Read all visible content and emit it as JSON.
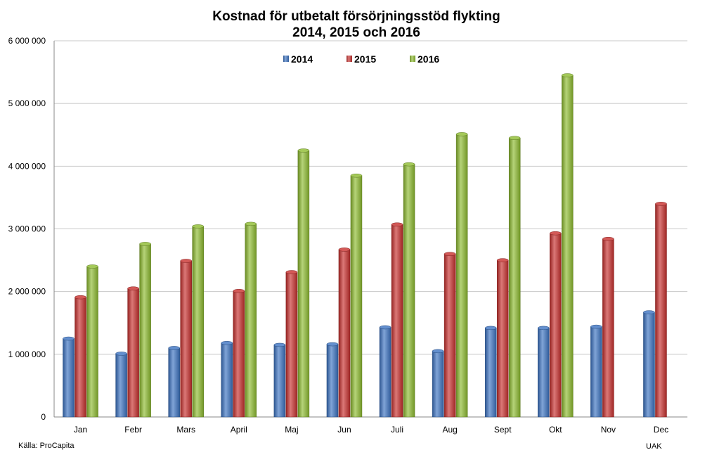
{
  "chart_data": {
    "type": "bar",
    "title": [
      "Kostnad för utbetalt försörjningsstöd flykting",
      "2014, 2015 och 2016"
    ],
    "categories": [
      "Jan",
      "Febr",
      "Mars",
      "April",
      "Maj",
      "Jun",
      "Juli",
      "Aug",
      "Sept",
      "Okt",
      "Nov",
      "Dec"
    ],
    "series": [
      {
        "name": "2014",
        "color": "#3c73c2",
        "values": [
          1250000,
          1010000,
          1100000,
          1180000,
          1150000,
          1160000,
          1430000,
          1050000,
          1420000,
          1420000,
          1440000,
          1670000
        ]
      },
      {
        "name": "2015",
        "color": "#c8302d",
        "values": [
          1910000,
          2050000,
          2490000,
          2010000,
          2310000,
          2670000,
          3070000,
          2600000,
          2500000,
          2930000,
          2840000,
          3400000
        ]
      },
      {
        "name": "2016",
        "color": "#8dbb2f",
        "values": [
          2400000,
          2760000,
          3040000,
          3080000,
          4250000,
          3850000,
          4030000,
          4510000,
          4450000,
          5450000,
          null,
          null
        ]
      }
    ],
    "ylim": [
      0,
      6000000
    ],
    "yticks": [
      "0",
      "1 000 000",
      "2 000 000",
      "3 000 000",
      "4 000 000",
      "5 000 000",
      "6 000 000"
    ],
    "xlabel": "",
    "ylabel": "",
    "grid": true,
    "legend": "top-center"
  },
  "notes": {
    "source": "Källa: ProCapita",
    "author": "UAK"
  }
}
